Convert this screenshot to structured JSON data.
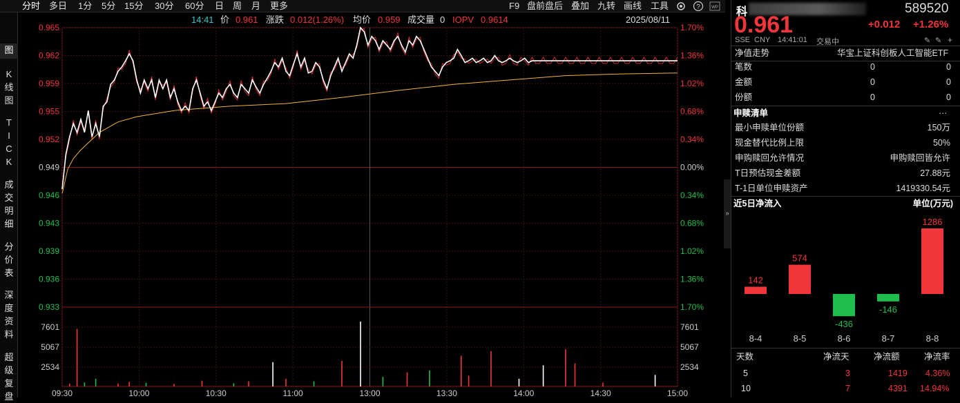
{
  "toolbar": {
    "tabs": [
      "分时",
      "多日",
      "1分",
      "5分",
      "15分",
      "30分",
      "60分",
      "日",
      "周",
      "月",
      "更多"
    ],
    "right": [
      "F9",
      "盘前盘后",
      "叠加",
      "九转",
      "画线",
      "工具"
    ]
  },
  "side_tabs": [
    "图",
    "K\n线\n图",
    "T\nI\nC\nK",
    "成\n交\n明\n细",
    "分\n价\n表",
    "深\n度\n资\n料",
    "超\n级\n复\n盘"
  ],
  "info": {
    "time": "14:41",
    "price_label": "价",
    "price": "0.961",
    "change_label": "涨跌",
    "change": "0.012(1.26%)",
    "avg_label": "均价",
    "avg": "0.959",
    "vol_label": "成交量",
    "vol": "0",
    "iopv_label": "IOPV",
    "iopv": "0.9614",
    "date": "2025/08/11"
  },
  "colors": {
    "up": "#f0353b",
    "down": "#1fbe4c",
    "price_line": "#ffffff",
    "avg_line": "#f0b43c",
    "iopv_line": "#e0303a"
  },
  "chart_data": {
    "type": "line",
    "x_ticks": [
      "09:30",
      "10:00",
      "10:30",
      "11:00",
      "13:00",
      "13:30",
      "14:00",
      "14:30",
      "15:00"
    ],
    "price_ticks_left": [
      "0.965",
      "0.962",
      "0.959",
      "0.955",
      "0.952",
      "0.949",
      "0.946",
      "0.943",
      "0.939",
      "0.936",
      "0.933"
    ],
    "pct_ticks_right": [
      "1.70%",
      "1.36%",
      "1.02%",
      "0.68%",
      "0.34%",
      "0.00%",
      "0.34%",
      "0.68%",
      "1.02%",
      "1.36%",
      "1.70%"
    ],
    "prev_close": 0.949,
    "ylim": [
      0.933,
      0.965
    ],
    "volume_ticks": [
      "7601",
      "5067",
      "2534"
    ],
    "volume_max": 10134,
    "series": [
      {
        "name": "价",
        "minutes": [
          0,
          2,
          4,
          6,
          8,
          10,
          12,
          14,
          16,
          18,
          20,
          22,
          24,
          26,
          28,
          30,
          32,
          34,
          36,
          38,
          40,
          42,
          44,
          46,
          48,
          50,
          52,
          54,
          56,
          58,
          60,
          62,
          64,
          66,
          68,
          70,
          72,
          74,
          76,
          78,
          80,
          82,
          84,
          86,
          88,
          90,
          92,
          94,
          96,
          98,
          100,
          102,
          104,
          106,
          108,
          110,
          112,
          114,
          116,
          118,
          120,
          122,
          124,
          126,
          128,
          130,
          132,
          134,
          136,
          138,
          140,
          142,
          144,
          146,
          148,
          150,
          152,
          154,
          156,
          158,
          160,
          162,
          164,
          166,
          168,
          170,
          172,
          174,
          176,
          178,
          180,
          182,
          184,
          186,
          188,
          190,
          192,
          194,
          196,
          198,
          200,
          202,
          204,
          206,
          208,
          210,
          212,
          214,
          216,
          218,
          220,
          222,
          224,
          226,
          228,
          230,
          232,
          234,
          236,
          238,
          240,
          242,
          244,
          246,
          248,
          250,
          252,
          254,
          256,
          258,
          260,
          262,
          264,
          266,
          268,
          270,
          272,
          274,
          276,
          278,
          280,
          282,
          284,
          286,
          288,
          290,
          292,
          294,
          296,
          298,
          300,
          302,
          304,
          306,
          308,
          310,
          312,
          314,
          316,
          318,
          320,
          322,
          324,
          326,
          328,
          330
        ],
        "values": [
          0.9465,
          0.9505,
          0.9525,
          0.954,
          0.953,
          0.9545,
          0.953,
          0.9555,
          0.9525,
          0.954,
          0.9525,
          0.956,
          0.9565,
          0.9585,
          0.959,
          0.96,
          0.9605,
          0.9612,
          0.962,
          0.9612,
          0.959,
          0.9575,
          0.959,
          0.958,
          0.959,
          0.957,
          0.959,
          0.958,
          0.959,
          0.957,
          0.958,
          0.9565,
          0.9555,
          0.956,
          0.9555,
          0.958,
          0.959,
          0.9575,
          0.956,
          0.9565,
          0.9555,
          0.9565,
          0.9575,
          0.957,
          0.958,
          0.9585,
          0.9575,
          0.957,
          0.9585,
          0.958,
          0.9575,
          0.959,
          0.9582,
          0.9575,
          0.9585,
          0.9592,
          0.96,
          0.961,
          0.9605,
          0.9615,
          0.96,
          0.9595,
          0.9608,
          0.962,
          0.9605,
          0.9615,
          0.9598,
          0.96,
          0.961,
          0.9605,
          0.959,
          0.958,
          0.9595,
          0.9605,
          0.9615,
          0.96,
          0.961,
          0.962,
          0.9615,
          0.963,
          0.965,
          0.9645,
          0.963,
          0.964,
          0.9635,
          0.9625,
          0.9635,
          0.963,
          0.9625,
          0.9635,
          0.964,
          0.963,
          0.9622,
          0.9635,
          0.963,
          0.964,
          0.9635,
          0.9625,
          0.9615,
          0.9605,
          0.96,
          0.9595,
          0.9605,
          0.961,
          0.9612,
          0.9615,
          0.9625,
          0.9618,
          0.961,
          0.9612,
          0.9615,
          0.961,
          0.9612,
          0.9615,
          0.961,
          0.9612,
          0.9618,
          0.9612,
          0.961,
          0.9612,
          0.9615,
          0.9612,
          0.961,
          0.9612,
          0.9615,
          0.961,
          0.9612,
          0.9612,
          0.9612,
          0.9612,
          0.9612,
          0.9612,
          0.9612,
          0.9612,
          0.9612,
          0.9612,
          0.9612,
          0.9612,
          0.9612,
          0.9612,
          0.9612,
          0.9612,
          0.9612,
          0.9612,
          0.9612,
          0.9612,
          0.9612,
          0.9612,
          0.9612,
          0.9612,
          0.9612,
          0.9612,
          0.9612,
          0.9612,
          0.9612,
          0.9612,
          0.9612,
          0.9612,
          0.9612,
          0.9612,
          0.9612,
          0.9612,
          0.9612,
          0.9612,
          0.9612,
          0.9612
        ]
      },
      {
        "name": "均价",
        "minutes": [
          0,
          3,
          6,
          10,
          15,
          20,
          30,
          40,
          60,
          90,
          120,
          150,
          180,
          210,
          240,
          270,
          300,
          330
        ],
        "values": [
          0.946,
          0.9488,
          0.95,
          0.951,
          0.952,
          0.953,
          0.9542,
          0.9548,
          0.9555,
          0.956,
          0.9563,
          0.957,
          0.9578,
          0.9585,
          0.959,
          0.9595,
          0.9597,
          0.9598
        ]
      }
    ],
    "volume_bars": [
      {
        "minute": 4,
        "value": 440,
        "dir": "up"
      },
      {
        "minute": 8,
        "value": 9000,
        "dir": "up"
      },
      {
        "minute": 12,
        "value": 620,
        "dir": "down"
      },
      {
        "minute": 18,
        "value": 1200,
        "dir": "down"
      },
      {
        "minute": 30,
        "value": 480,
        "dir": "up"
      },
      {
        "minute": 36,
        "value": 700,
        "dir": "up"
      },
      {
        "minute": 45,
        "value": 560,
        "dir": "down"
      },
      {
        "minute": 60,
        "value": 380,
        "dir": "up"
      },
      {
        "minute": 75,
        "value": 900,
        "dir": "up"
      },
      {
        "minute": 92,
        "value": 500,
        "dir": "down"
      },
      {
        "minute": 100,
        "value": 800,
        "dir": "up"
      },
      {
        "minute": 113,
        "value": 3800,
        "dir": "flat"
      },
      {
        "minute": 120,
        "value": 1200,
        "dir": "up"
      },
      {
        "minute": 135,
        "value": 800,
        "dir": "down"
      },
      {
        "minute": 150,
        "value": 4000,
        "dir": "up"
      },
      {
        "minute": 160,
        "value": 10134,
        "dir": "flat"
      },
      {
        "minute": 172,
        "value": 1500,
        "dir": "down"
      },
      {
        "minute": 185,
        "value": 2200,
        "dir": "up"
      },
      {
        "minute": 197,
        "value": 2500,
        "dir": "down"
      },
      {
        "minute": 214,
        "value": 4800,
        "dir": "up"
      },
      {
        "minute": 218,
        "value": 1700,
        "dir": "up"
      },
      {
        "minute": 230,
        "value": 5500,
        "dir": "up"
      },
      {
        "minute": 245,
        "value": 1200,
        "dir": "flat"
      },
      {
        "minute": 258,
        "value": 3300,
        "dir": "flat"
      },
      {
        "minute": 270,
        "value": 5800,
        "dir": "up"
      },
      {
        "minute": 275,
        "value": 3600,
        "dir": "up"
      },
      {
        "minute": 290,
        "value": 600,
        "dir": "up"
      },
      {
        "minute": 318,
        "value": 1800,
        "dir": "flat"
      }
    ]
  },
  "panel": {
    "name_prefix": "科",
    "code": "589520",
    "price": "0.961",
    "change": "+0.012",
    "change_pct": "+1.26%",
    "exchange": "SSE",
    "currency": "CNY",
    "time": "14:41:01",
    "status": "交易中",
    "nav_label": "净值走势",
    "fund_name": "华宝上证科创板人工智能ETF",
    "stats": [
      {
        "label": "笔数",
        "a": "0",
        "b": "0"
      },
      {
        "label": "金额",
        "a": "0",
        "b": "0"
      },
      {
        "label": "份额",
        "a": "0",
        "b": "0"
      }
    ],
    "subscribe_title": "申赎清单",
    "more": "···",
    "subscribe": [
      {
        "label": "最小申赎单位份额",
        "value": "150万"
      },
      {
        "label": "现金替代比例上限",
        "value": "50%"
      },
      {
        "label": "申购赎回允许情况",
        "value": "申购赎回皆允许"
      },
      {
        "label": "T日预估现金差额",
        "value": "27.88元"
      },
      {
        "label": "T-1日单位申赎资产",
        "value": "1419330.54元"
      }
    ],
    "flow_title": "近5日净流入",
    "flow_unit": "单位(万元)",
    "flow": [
      {
        "date": "8-4",
        "value": 142
      },
      {
        "date": "8-5",
        "value": 574
      },
      {
        "date": "8-6",
        "value": -436
      },
      {
        "date": "8-7",
        "value": -146
      },
      {
        "date": "8-8",
        "value": 1286
      }
    ],
    "table_headers": [
      "天数",
      "净流天",
      "净流额",
      "净流率"
    ],
    "table_rows": [
      [
        "5",
        "3",
        "1419",
        "4.36%"
      ],
      [
        "10",
        "7",
        "4391",
        "14.94%"
      ]
    ]
  }
}
